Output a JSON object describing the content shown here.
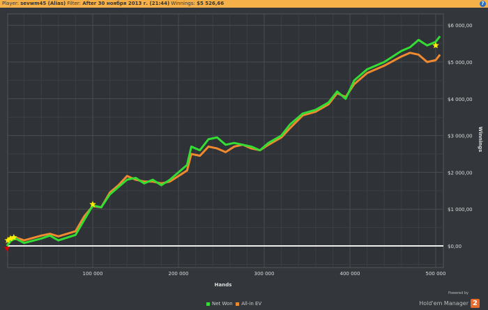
{
  "header": {
    "player_label": "Player:",
    "player": "sevwm45 (Alias)",
    "filter_label": "Filter:",
    "filter": "After 30 ноября 2013 г. (21:44)",
    "winnings_label": "Winnings:",
    "winnings": "$5 526,66",
    "help": "?"
  },
  "chart_data": {
    "type": "line",
    "xlabel": "Hands",
    "ylabel": "Winnings",
    "xlim": [
      0,
      510000
    ],
    "ylim": [
      -600,
      6300
    ],
    "xticks": [
      100000,
      200000,
      300000,
      400000,
      500000
    ],
    "xtick_labels": [
      "100 000",
      "200 000",
      "300 000",
      "400 000",
      "500 000"
    ],
    "yticks": [
      0,
      1000,
      2000,
      3000,
      4000,
      5000,
      6000
    ],
    "ytick_labels": [
      "$0,00",
      "$1 000,00",
      "$2 000,00",
      "$3 000,00",
      "$4 000,00",
      "$5 000,00",
      "$6 000,00"
    ],
    "grid": true,
    "legend_placement": "bottom",
    "x": [
      0,
      5000,
      10000,
      20000,
      40000,
      50000,
      60000,
      80000,
      90000,
      100000,
      110000,
      120000,
      130000,
      140000,
      150000,
      160000,
      170000,
      180000,
      190000,
      200000,
      210000,
      215000,
      225000,
      235000,
      245000,
      255000,
      265000,
      275000,
      285000,
      295000,
      305000,
      320000,
      330000,
      345000,
      360000,
      375000,
      385000,
      395000,
      405000,
      420000,
      440000,
      460000,
      470000,
      480000,
      490000,
      500000,
      505000
    ],
    "series": [
      {
        "name": "Net Won",
        "color": "#33dd33",
        "values": [
          0,
          150,
          200,
          80,
          200,
          280,
          150,
          300,
          700,
          1100,
          1050,
          1400,
          1600,
          1800,
          1850,
          1700,
          1800,
          1650,
          1800,
          2000,
          2200,
          2700,
          2600,
          2900,
          2950,
          2750,
          2800,
          2750,
          2700,
          2600,
          2800,
          3000,
          3300,
          3600,
          3700,
          3900,
          4200,
          4000,
          4500,
          4800,
          5000,
          5300,
          5400,
          5600,
          5450,
          5550,
          5700
        ]
      },
      {
        "name": "All-in EV",
        "color": "#f08a30",
        "values": [
          0,
          180,
          230,
          150,
          280,
          330,
          260,
          400,
          800,
          1080,
          1050,
          1450,
          1650,
          1900,
          1800,
          1750,
          1750,
          1700,
          1750,
          1900,
          2050,
          2500,
          2450,
          2700,
          2650,
          2550,
          2700,
          2750,
          2650,
          2600,
          2750,
          2950,
          3200,
          3550,
          3650,
          3850,
          4150,
          4050,
          4400,
          4700,
          4900,
          5150,
          5250,
          5200,
          5000,
          5050,
          5200
        ]
      }
    ],
    "markers": [
      {
        "type": "star",
        "color": "#ffee00",
        "x": [
          1000,
          4000,
          8000,
          100000,
          500000
        ],
        "y": [
          150,
          200,
          230,
          1130,
          5450
        ]
      },
      {
        "type": "triangle-down",
        "color": "#dd0000",
        "x": [
          0
        ],
        "y": [
          -80
        ]
      }
    ]
  },
  "logo": {
    "powered": "Powered by",
    "name": "Hold'em Manager",
    "badge": "2"
  }
}
